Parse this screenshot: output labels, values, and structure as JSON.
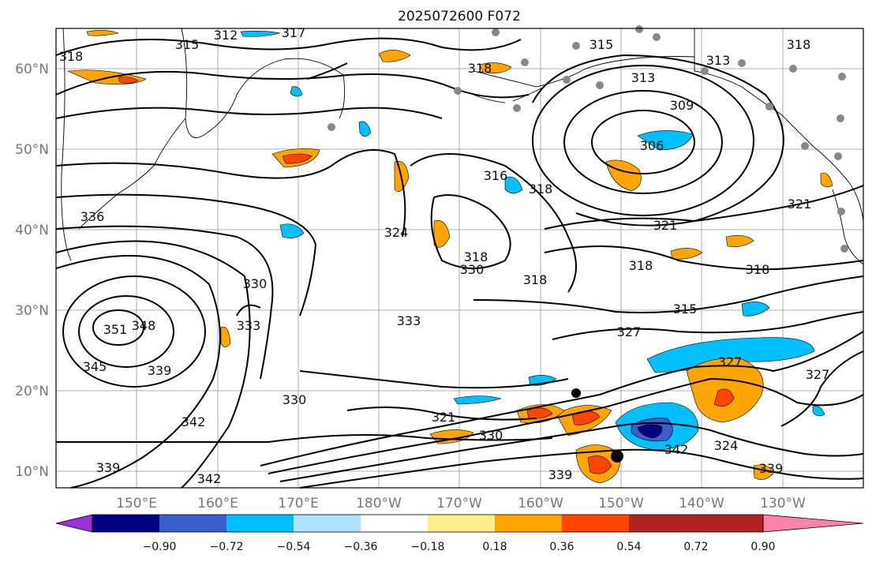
{
  "title": "2025072600 F072",
  "map": {
    "lon_labels": [
      "150°E",
      "160°E",
      "170°E",
      "180°W",
      "170°W",
      "160°W",
      "150°W",
      "140°W",
      "130°W"
    ],
    "lat_labels": [
      "60°N",
      "50°N",
      "40°N",
      "30°N",
      "20°N",
      "10°N"
    ],
    "contour_labels": [
      "318",
      "315",
      "312",
      "317",
      "318",
      "315",
      "318",
      "313",
      "309",
      "306",
      "321",
      "321",
      "318",
      "318",
      "324",
      "318",
      "315",
      "330",
      "333",
      "333",
      "342",
      "348",
      "351",
      "345",
      "339",
      "342",
      "339",
      "330",
      "330",
      "327",
      "327",
      "327",
      "321",
      "330",
      "339",
      "339",
      "324",
      "318",
      "336",
      "342",
      "313",
      "316",
      "318"
    ]
  },
  "colorbar": {
    "ticks": [
      "−0.90",
      "−0.72",
      "−0.54",
      "−0.36",
      "−0.18",
      "0.18",
      "0.36",
      "0.54",
      "0.72",
      "0.90"
    ],
    "colors": [
      "#9b30d9",
      "#000080",
      "#3a5fcd",
      "#00bfff",
      "#b0e2ff",
      "#ffffff",
      "#ffec8b",
      "#ffa500",
      "#ff4500",
      "#b22222",
      "#ff82ab"
    ]
  }
}
